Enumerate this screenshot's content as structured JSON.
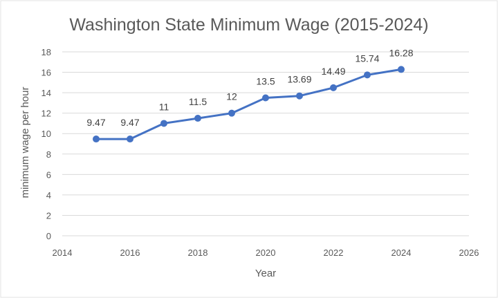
{
  "chart_data": {
    "type": "line",
    "title": "Washington State Minimum Wage (2015-2024)",
    "xlabel": "Year",
    "ylabel": "minimum wage per hour",
    "xlim": [
      2014,
      2026
    ],
    "ylim": [
      0,
      18
    ],
    "x_ticks": [
      2014,
      2016,
      2018,
      2020,
      2022,
      2024,
      2026
    ],
    "y_ticks": [
      0,
      2,
      4,
      6,
      8,
      10,
      12,
      14,
      16,
      18
    ],
    "grid": "horizontal",
    "legend": "none",
    "colors": {
      "series": "#4472c4",
      "grid": "#d9d9d9",
      "text": "#595959"
    },
    "series": [
      {
        "x": [
          2015,
          2016,
          2017,
          2018,
          2019,
          2020,
          2021,
          2022,
          2023,
          2024
        ],
        "values": [
          9.47,
          9.47,
          11,
          11.5,
          12,
          13.5,
          13.69,
          14.49,
          15.74,
          16.28
        ],
        "labels": [
          "9.47",
          "9.47",
          "11",
          "11.5",
          "12",
          "13.5",
          "13.69",
          "14.49",
          "15.74",
          "16.28"
        ]
      }
    ]
  }
}
